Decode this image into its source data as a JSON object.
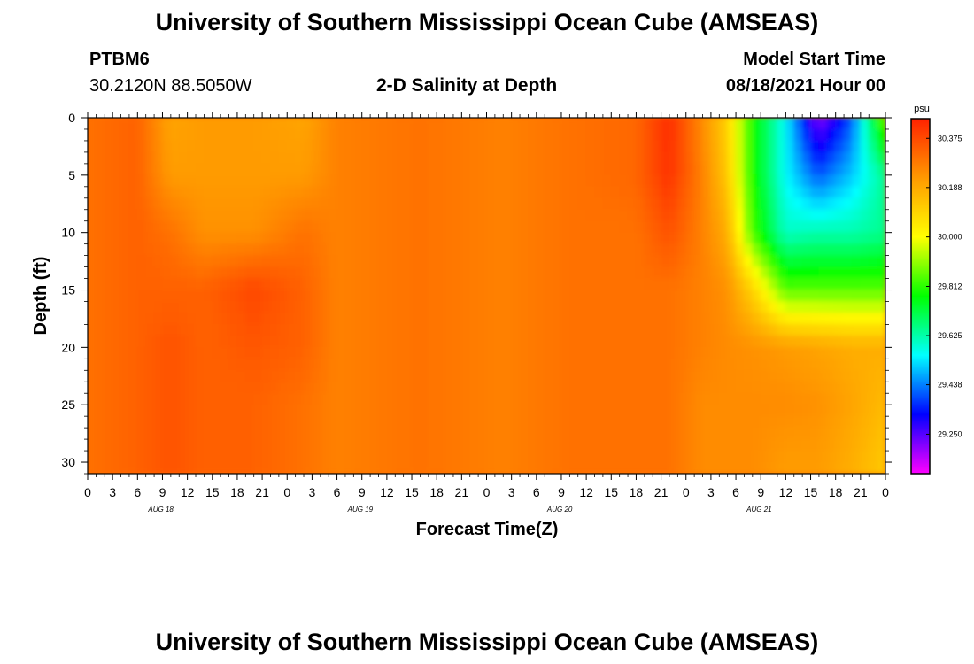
{
  "header": {
    "title_top": "University of Southern Mississippi Ocean Cube (AMSEAS)",
    "title_bottom": "University of Southern Mississippi Ocean Cube (AMSEAS)",
    "station": "PTBM6",
    "coords": "30.2120N  88.5050W",
    "subtitle": "2-D Salinity at Depth",
    "start_label": "Model Start Time",
    "start_value": "08/18/2021 Hour 00"
  },
  "chart_data": {
    "type": "heatmap",
    "title": "2-D Salinity at Depth",
    "xlabel": "Forecast Time(Z)",
    "ylabel": "Depth (ft)",
    "units": "psu",
    "xlim_hours": [
      0,
      96
    ],
    "ylim_ft": [
      0,
      31
    ],
    "x_tick_labels": [
      "0",
      "3",
      "6",
      "9",
      "12",
      "15",
      "18",
      "21",
      "0",
      "3",
      "6",
      "9",
      "12",
      "15",
      "18",
      "21",
      "0",
      "3",
      "6",
      "9",
      "12",
      "15",
      "18",
      "21",
      "0",
      "3",
      "6",
      "9",
      "12",
      "15",
      "18",
      "21",
      "0"
    ],
    "y_tick_labels": [
      "0",
      "5",
      "10",
      "15",
      "20",
      "25",
      "30"
    ],
    "y_tick_values": [
      0,
      5,
      10,
      15,
      20,
      25,
      30
    ],
    "date_labels": [
      {
        "text": "AUG 18",
        "hour": 12
      },
      {
        "text": "AUG 19",
        "hour": 36
      },
      {
        "text": "AUG 20",
        "hour": 60
      },
      {
        "text": "AUG 21",
        "hour": 84
      }
    ],
    "colorbar": {
      "label": "psu",
      "min": 29.1,
      "max": 30.45,
      "ticks": [
        "30.375",
        "30.188",
        "30.000",
        "29.812",
        "29.625",
        "29.438",
        "29.250"
      ],
      "tick_values": [
        30.375,
        30.188,
        30.0,
        29.812,
        29.625,
        29.438,
        29.25
      ],
      "colors": [
        "#ff00ff",
        "#0000ff",
        "#00ffff",
        "#00ff00",
        "#ffff00",
        "#ff9900",
        "#ff2200"
      ]
    },
    "salinity_psu_by_hour_and_depth": {
      "depths_ft": [
        0,
        5,
        10,
        15,
        20,
        25,
        30
      ],
      "rows": [
        {
          "hour": 0,
          "values": [
            30.3,
            30.3,
            30.3,
            30.3,
            30.3,
            30.3,
            30.3
          ]
        },
        {
          "hour": 6,
          "values": [
            30.33,
            30.33,
            30.33,
            30.33,
            30.33,
            30.33,
            30.33
          ]
        },
        {
          "hour": 10,
          "values": [
            30.2,
            30.22,
            30.3,
            30.33,
            30.36,
            30.36,
            30.36
          ]
        },
        {
          "hour": 14,
          "values": [
            30.22,
            30.22,
            30.24,
            30.33,
            30.33,
            30.33,
            30.33
          ]
        },
        {
          "hour": 20,
          "values": [
            30.22,
            30.22,
            30.24,
            30.38,
            30.35,
            30.33,
            30.33
          ]
        },
        {
          "hour": 26,
          "values": [
            30.2,
            30.22,
            30.3,
            30.33,
            30.33,
            30.3,
            30.3
          ]
        },
        {
          "hour": 30,
          "values": [
            30.27,
            30.27,
            30.27,
            30.27,
            30.27,
            30.27,
            30.27
          ]
        },
        {
          "hour": 40,
          "values": [
            30.3,
            30.3,
            30.3,
            30.3,
            30.3,
            30.3,
            30.3
          ]
        },
        {
          "hour": 50,
          "values": [
            30.27,
            30.27,
            30.27,
            30.27,
            30.27,
            30.27,
            30.27
          ]
        },
        {
          "hour": 58,
          "values": [
            30.3,
            30.3,
            30.3,
            30.3,
            30.3,
            30.3,
            30.3
          ]
        },
        {
          "hour": 66,
          "values": [
            30.32,
            30.32,
            30.3,
            30.3,
            30.3,
            30.3,
            30.3
          ]
        },
        {
          "hour": 70,
          "values": [
            30.43,
            30.42,
            30.36,
            30.3,
            30.3,
            30.3,
            30.3
          ]
        },
        {
          "hour": 74,
          "values": [
            30.25,
            30.27,
            30.27,
            30.27,
            30.27,
            30.25,
            30.25
          ]
        },
        {
          "hour": 77,
          "values": [
            30.1,
            30.12,
            30.18,
            30.24,
            30.25,
            30.25,
            30.25
          ]
        },
        {
          "hour": 80,
          "values": [
            29.8,
            29.8,
            29.84,
            30.1,
            30.24,
            30.25,
            30.25
          ]
        },
        {
          "hour": 84,
          "values": [
            29.55,
            29.55,
            29.6,
            29.85,
            30.22,
            30.25,
            30.22
          ]
        },
        {
          "hour": 88,
          "values": [
            29.2,
            29.4,
            29.62,
            29.85,
            30.2,
            30.24,
            30.22
          ]
        },
        {
          "hour": 92,
          "values": [
            29.4,
            29.5,
            29.62,
            29.85,
            30.18,
            30.2,
            30.18
          ]
        },
        {
          "hour": 96,
          "values": [
            29.9,
            29.65,
            29.65,
            29.85,
            30.18,
            30.15,
            30.12
          ]
        }
      ]
    }
  }
}
